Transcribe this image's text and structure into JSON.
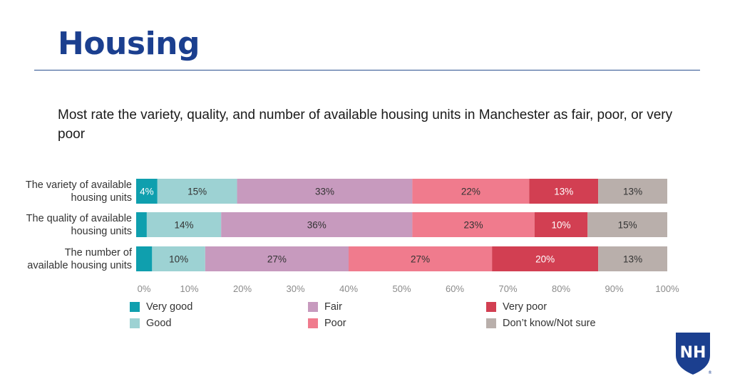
{
  "page": {
    "title": "Housing",
    "subtitle": "Most rate the variety, quality, and number of available housing units in Manchester as fair, poor, or very poor"
  },
  "logo": {
    "text": "NH",
    "mark": "®"
  },
  "colors": {
    "title": "#1b3f8f",
    "rule": "#2a4f8f"
  },
  "chart_data": {
    "type": "bar",
    "orientation": "horizontal",
    "stacked": true,
    "categories": [
      [
        "The variety of available",
        "housing units"
      ],
      [
        "The quality of available",
        "housing units"
      ],
      [
        "The number of",
        "available housing units"
      ]
    ],
    "series": [
      {
        "name": "Very good",
        "color": "#0f9fae",
        "text_color": "#ffffff",
        "values": [
          4,
          2,
          3
        ]
      },
      {
        "name": "Good",
        "color": "#9dd2d3",
        "text_color": "#333333",
        "values": [
          15,
          14,
          10
        ]
      },
      {
        "name": "Fair",
        "color": "#c79abe",
        "text_color": "#333333",
        "values": [
          33,
          36,
          27
        ]
      },
      {
        "name": "Poor",
        "color": "#f07b8d",
        "text_color": "#333333",
        "values": [
          22,
          23,
          27
        ]
      },
      {
        "name": "Very poor",
        "color": "#d23f52",
        "text_color": "#ffffff",
        "values": [
          13,
          10,
          20
        ]
      },
      {
        "name": "Don’t know/Not sure",
        "color": "#b9afab",
        "text_color": "#333333",
        "values": [
          13,
          15,
          13
        ]
      }
    ],
    "data_labels": [
      [
        "4%",
        "15%",
        "33%",
        "22%",
        "13%",
        "13%"
      ],
      [
        "",
        "14%",
        "36%",
        "23%",
        "10%",
        "15%"
      ],
      [
        "",
        "10%",
        "27%",
        "27%",
        "20%",
        "13%"
      ]
    ],
    "xticks": [
      "0%",
      "10%",
      "20%",
      "30%",
      "40%",
      "50%",
      "60%",
      "70%",
      "80%",
      "90%",
      "100%"
    ],
    "xlim": [
      0,
      100
    ],
    "legend_position": "bottom"
  }
}
